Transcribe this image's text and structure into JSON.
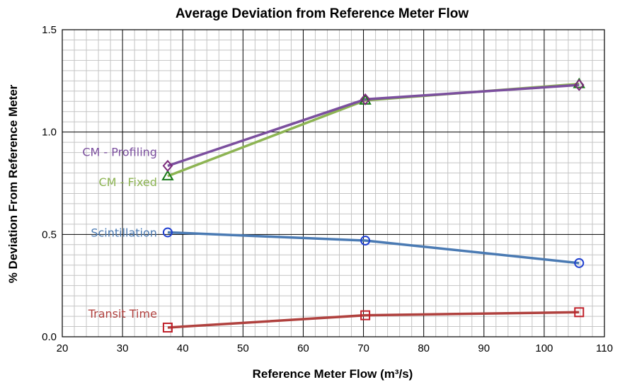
{
  "chart_data": {
    "type": "line",
    "title": "Average  Deviation  from  Reference  Meter  Flow",
    "xlabel": "Reference Meter Flow (m³/s)",
    "ylabel": "% Deviation From Reference Meter",
    "xlim": [
      20,
      110
    ],
    "ylim": [
      0.0,
      1.5
    ],
    "x_ticks": [
      20,
      30,
      40,
      50,
      60,
      70,
      80,
      90,
      100,
      110
    ],
    "y_ticks": [
      "0.0",
      "0.5",
      "1.0",
      "1.5"
    ],
    "grid": true,
    "series": [
      {
        "name": "CM - Profiling",
        "color": "#7b4f9e",
        "marker": "diamond",
        "marker_color": "#7b2a7b",
        "x": [
          37.5,
          70.3,
          105.8
        ],
        "y": [
          0.835,
          1.16,
          1.23
        ]
      },
      {
        "name": "CM - Fixed",
        "color": "#8db453",
        "marker": "triangle",
        "marker_color": "#1a7a1a",
        "x": [
          37.5,
          70.3,
          105.8
        ],
        "y": [
          0.785,
          1.155,
          1.235
        ]
      },
      {
        "name": "Scintillation",
        "color": "#4a7ab3",
        "marker": "circle",
        "marker_color": "#1f3fd0",
        "x": [
          37.5,
          70.3,
          105.8
        ],
        "y": [
          0.51,
          0.47,
          0.36
        ]
      },
      {
        "name": "Transit Time",
        "color": "#b0413e",
        "marker": "square",
        "marker_color": "#c0202a",
        "x": [
          37.5,
          70.3,
          105.8
        ],
        "y": [
          0.045,
          0.105,
          0.12
        ]
      }
    ]
  }
}
